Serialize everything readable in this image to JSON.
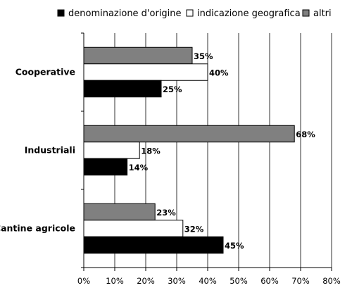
{
  "chart_data": {
    "type": "bar",
    "orientation": "horizontal",
    "categories": [
      "Cooperative",
      "Industriali",
      "Cantine agricole"
    ],
    "series": [
      {
        "name": "denominazione d'origine",
        "values": [
          25,
          14,
          45
        ],
        "labels": [
          "25%",
          "14%",
          "45%"
        ],
        "color": "#000000"
      },
      {
        "name": "indicazione geografica",
        "values": [
          40,
          18,
          32
        ],
        "labels": [
          "40%",
          "18%",
          "32%"
        ],
        "color": "#ffffff"
      },
      {
        "name": "altri",
        "values": [
          35,
          68,
          23
        ],
        "labels": [
          "35%",
          "68%",
          "23%"
        ],
        "color": "#808080"
      }
    ],
    "xlim": [
      0,
      80
    ],
    "x_ticks": [
      "0%",
      "10%",
      "20%",
      "30%",
      "40%",
      "50%",
      "60%",
      "70%",
      "80%"
    ],
    "title": "",
    "xlabel": "",
    "ylabel": "",
    "grid": "vertical",
    "legend_position": "top"
  }
}
